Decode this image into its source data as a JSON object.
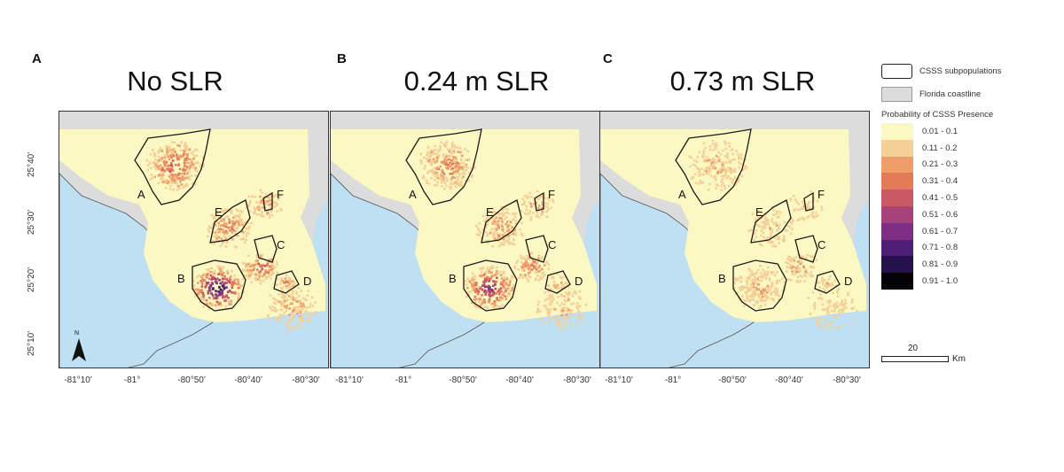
{
  "panels": [
    {
      "letter": "A",
      "title": "No SLR",
      "intensity": 1.0
    },
    {
      "letter": "B",
      "title": "0.24 m SLR",
      "intensity": 0.75
    },
    {
      "letter": "C",
      "title": "0.73 m SLR",
      "intensity": 0.4
    }
  ],
  "subpopulation_labels": [
    "A",
    "B",
    "C",
    "D",
    "E",
    "F"
  ],
  "lat_ticks": [
    "25°40'",
    "25°30'",
    "25°20'",
    "25°10'"
  ],
  "lon_ticks": [
    "-81°10'",
    "-81°",
    "-80°50'",
    "-80°40'",
    "-80°30'"
  ],
  "north_arrow_label": "N",
  "legend": {
    "subpop_label": "CSSS subpopulations",
    "coast_label": "Florida coastline",
    "heading": "Probability of CSSS Presence",
    "classes": [
      {
        "label": "0.01 - 0.1",
        "color": "#fcf8c4"
      },
      {
        "label": "0.11 - 0.2",
        "color": "#f4cf98"
      },
      {
        "label": "0.21 - 0.3",
        "color": "#ef9e6a"
      },
      {
        "label": "0.31 - 0.4",
        "color": "#e47a5a"
      },
      {
        "label": "0.41 - 0.5",
        "color": "#c95a63"
      },
      {
        "label": "0.51 - 0.6",
        "color": "#a8437a"
      },
      {
        "label": "0.61 - 0.7",
        "color": "#7e2e84"
      },
      {
        "label": "0.71 - 0.8",
        "color": "#4f1f78"
      },
      {
        "label": "0.81 - 0.9",
        "color": "#26124b"
      },
      {
        "label": "0.91 - 1.0",
        "color": "#050308"
      }
    ]
  },
  "scale": {
    "value": "20",
    "unit": "Km"
  },
  "colors": {
    "water": "#bfe0f2",
    "land": "#dcdcdc",
    "outline": "#1a1a1a"
  }
}
